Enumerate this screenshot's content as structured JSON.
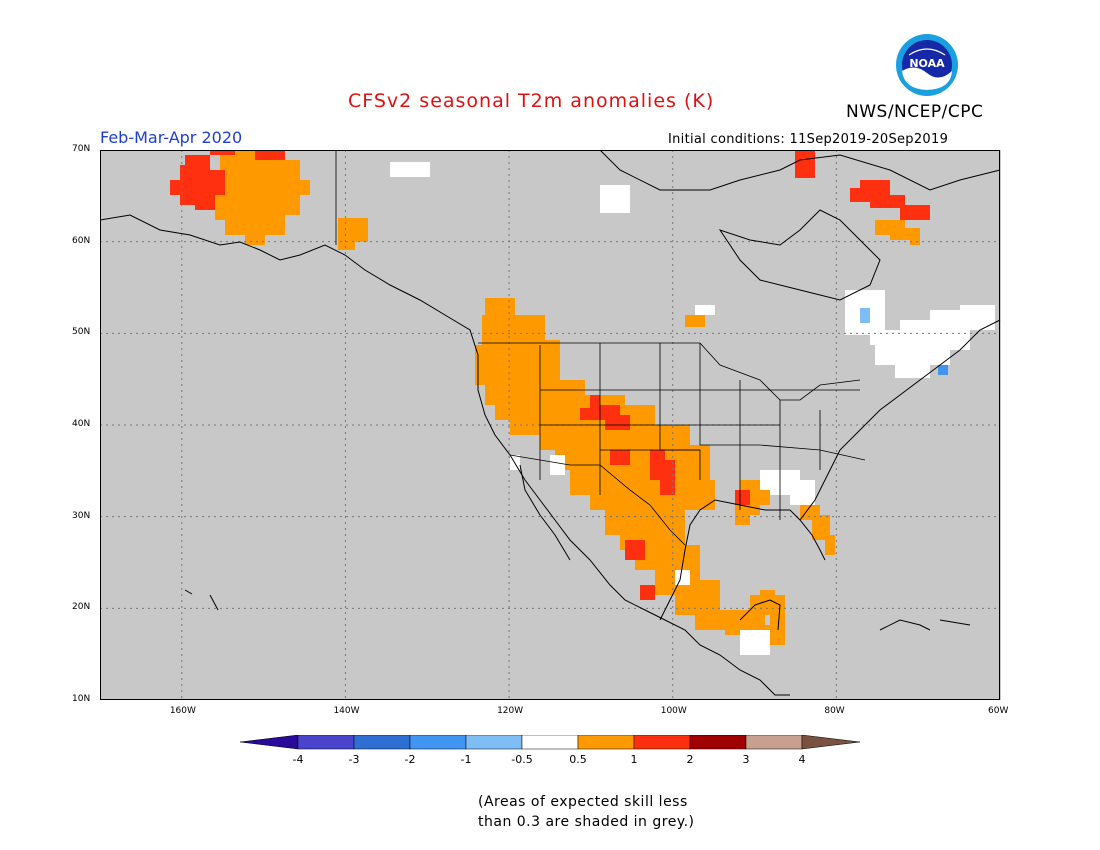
{
  "header": {
    "title": "CFSv2 seasonal T2m anomalies (K)",
    "agency": "NWS/NCEP/CPC",
    "logo_text": "NOAA",
    "period": "Feb-Mar-Apr 2020",
    "initial_conditions": "Initial conditions: 11Sep2019-20Sep2019"
  },
  "colors": {
    "title": "#e01010",
    "period": "#1f3fd0",
    "map_background": "#c8c8c8",
    "lines": "#000000"
  },
  "map": {
    "lon_range": [
      -170,
      -60
    ],
    "lat_range": [
      10,
      70
    ],
    "lat_labels": [
      "70N",
      "60N",
      "50N",
      "40N",
      "30N",
      "20N",
      "10N"
    ],
    "lon_labels": [
      "160W",
      "140W",
      "120W",
      "100W",
      "80W",
      "60W"
    ],
    "anomaly_regions": [
      {
        "name": "alaska-west",
        "level": "1-2",
        "color": "#ff3010"
      },
      {
        "name": "alaska-interior",
        "level": "0.5-1",
        "color": "#ff9900"
      },
      {
        "name": "western-us",
        "level": "0.5-1",
        "color": "#ff9900"
      },
      {
        "name": "colorado-rockies",
        "level": "1-2",
        "color": "#ff3010"
      },
      {
        "name": "texas-mexico",
        "level": "0.5-1",
        "color": "#ff9900"
      },
      {
        "name": "northern-quebec",
        "level": "1-2",
        "color": "#ff3010"
      },
      {
        "name": "eastern-canada",
        "level": "-0.5-0.5",
        "color": "#ffffff"
      },
      {
        "name": "southeast-us",
        "level": "-0.5-0.5",
        "color": "#ffffff"
      }
    ]
  },
  "legend": {
    "labels": [
      "-4",
      "-3",
      "-2",
      "-1",
      "-0.5",
      "0.5",
      "1",
      "2",
      "3",
      "4"
    ],
    "colors": [
      "#2a0a9a",
      "#4a44cc",
      "#2f6fd4",
      "#3f95ef",
      "#7fbdf5",
      "#ffffff",
      "#ff9900",
      "#ff3010",
      "#a00000",
      "#c8a090",
      "#7a5040"
    ]
  },
  "footnote": {
    "line1": "(Areas of expected skill less",
    "line2": "than 0.3 are shaded in grey.)"
  }
}
